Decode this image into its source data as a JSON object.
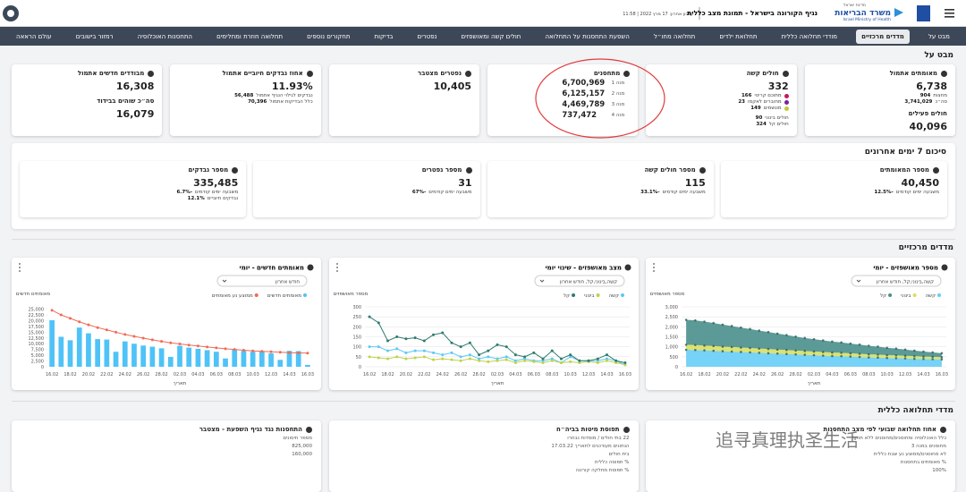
{
  "header": {
    "state": "מדינת ישראל",
    "ministry": "משרד הבריאות",
    "ministry_en": "Israel Ministry of Health",
    "title": "נגיף הקורונה בישראל - תמונת מצב כללית",
    "updated": "עדכון אחרון: 17 מרץ 2022 | 11:58"
  },
  "nav": [
    "מבט על",
    "מדדים מרכזיים",
    "מודדי תחלואה כללית",
    "תחלואת ילדים",
    "תחלואה מחו״ל",
    "השפעת התחסנות על התחלואה",
    "חולים קשה ומאושפזים",
    "נפטרים",
    "בדיקות",
    "תחקורים נוספים",
    "תחלואה חוזרת ומחלימים",
    "התחסנות האוכלוסיה",
    "רמזור בישובים",
    "עולם הראאה"
  ],
  "overview": {
    "title": "מבט על",
    "cards": [
      {
        "title": "מאומתים אתמול",
        "value": "6,738",
        "rows": [
          {
            "label": "מחצות",
            "value": "904"
          },
          {
            "label": "סה״כ",
            "value": "3,741,029"
          }
        ],
        "subtitle": "חולים פעילים",
        "value2": "40,096",
        "rows2": [
          {
            "label": "בבית",
            "value": "765"
          },
          {
            "label": "מחצות",
            "value": "-2597"
          }
        ]
      },
      {
        "title": "חולים קשה",
        "value": "332",
        "rows": [
          {
            "label": "מתוכם קריטי",
            "value": "166",
            "color": "#c2185b"
          },
          {
            "label": "מחוברים לאקמו",
            "value": "23",
            "color": "#7b1fa2"
          },
          {
            "label": "מונשמים",
            "value": "149",
            "color": "#c0ca33"
          }
        ],
        "rows2": [
          {
            "label": "חולים בינוני",
            "value": "90"
          },
          {
            "label": "חולים קל",
            "value": "324"
          }
        ]
      },
      {
        "title": "מתחסנים",
        "doses": [
          {
            "label": "מנה 1",
            "value": "6,700,969"
          },
          {
            "label": "מנה 2",
            "value": "6,125,157"
          },
          {
            "label": "מנה 3",
            "value": "4,469,789"
          },
          {
            "label": "מנה 4",
            "value": "737,472"
          }
        ]
      },
      {
        "title": "נפטרים מצטבר",
        "value": "10,405"
      },
      {
        "title": "אחוז נבדקים חיוביים אתמול",
        "value": "11.93%",
        "rows": [
          {
            "label": "נבדקים לגילוי הנגיף אתמול",
            "value": "56,488"
          },
          {
            "label": "כלל הבדיקות אתמול",
            "value": "70,396"
          }
        ]
      },
      {
        "title": "מבודדים חדשים אתמול",
        "value": "16,308",
        "subtitle": "סה״כ שוהים בבידוד",
        "value2": "16,079"
      }
    ]
  },
  "summary": {
    "title": "סיכום 7 ימים אחרונים",
    "cards": [
      {
        "title": "מספר המאומתים",
        "value": "40,450",
        "rows": [
          {
            "label": "משבעה ימים קודמים",
            "value": "-12.5%"
          }
        ]
      },
      {
        "title": "מספר חולים קשה",
        "value": "115",
        "rows": [
          {
            "label": "משבעה ימים קודמים",
            "value": "-33.1%"
          }
        ]
      },
      {
        "title": "מספר נפטרים",
        "value": "31",
        "rows": [
          {
            "label": "משבעה ימים קודמים",
            "value": "-67%"
          }
        ]
      },
      {
        "title": "מספר נבדקים",
        "value": "335,485",
        "rows": [
          {
            "label": "משבעה ימים קודמים",
            "value": "-6.7%"
          },
          {
            "label": "נבדקים חיוביים",
            "value": "12.1%"
          }
        ]
      }
    ]
  },
  "key_metrics": {
    "title": "מדדים מרכזיים"
  },
  "chart_data": [
    {
      "type": "area",
      "stacked": true,
      "title": "מספר מאושפזים - יומי",
      "dropdown": "קשה,בינוני,קל, חודש אחרון",
      "ylabel": "מספר מאושפזים",
      "xlabel": "תאריך",
      "grid": true,
      "categories": [
        "16.02",
        null,
        "18.02",
        null,
        "20.02",
        null,
        "22.02",
        null,
        "24.02",
        null,
        "26.02",
        null,
        "28.02",
        null,
        "02.03",
        null,
        "04.03",
        null,
        "06.03",
        null,
        "08.03",
        null,
        "10.03",
        null,
        "12.03",
        null,
        "14.03",
        null,
        "16.03"
      ],
      "ylim": [
        0,
        3000
      ],
      "yticks": [
        0,
        500,
        {
          "value": 1000,
          "label": "1,000"
        },
        {
          "value": 1500,
          "label": "1,500"
        },
        {
          "value": 2000,
          "label": "2,000"
        },
        {
          "value": 2500,
          "label": "2,500"
        },
        {
          "value": 3000,
          "label": "3,000"
        }
      ],
      "series": [
        {
          "name": "קשה",
          "color": "#67cdf5",
          "values": [
            850,
            840,
            820,
            800,
            780,
            760,
            740,
            720,
            700,
            680,
            660,
            640,
            620,
            600,
            580,
            560,
            540,
            530,
            510,
            490,
            470,
            460,
            440,
            430,
            420,
            400,
            390,
            380,
            370
          ]
        },
        {
          "name": "בינוני",
          "color": "#d9df5e",
          "values": [
            250,
            250,
            240,
            240,
            230,
            230,
            220,
            220,
            210,
            210,
            200,
            200,
            190,
            190,
            180,
            180,
            170,
            170,
            160,
            160,
            150,
            150,
            140,
            140,
            130,
            130,
            120,
            120,
            110
          ]
        },
        {
          "name": "קל",
          "color": "#4a8f8c",
          "values": [
            1250,
            1230,
            1200,
            1150,
            1100,
            1050,
            1000,
            950,
            900,
            850,
            800,
            750,
            700,
            650,
            620,
            580,
            550,
            520,
            490,
            460,
            430,
            400,
            370,
            340,
            310,
            280,
            250,
            220,
            200
          ]
        }
      ]
    },
    {
      "type": "line",
      "title": "מצב מאושפזים - שינוי יומי",
      "dropdown": "קשה,בינוני,קל, חודש אחרון",
      "ylabel": "מספר מאושפזים",
      "xlabel": "תאריך",
      "grid": true,
      "categories": [
        "16.02",
        null,
        "18.02",
        null,
        "20.02",
        null,
        "22.02",
        null,
        "24.02",
        null,
        "26.02",
        null,
        "28.02",
        null,
        "02.03",
        null,
        "04.03",
        null,
        "06.03",
        null,
        "08.03",
        null,
        "10.03",
        null,
        "12.03",
        null,
        "14.03",
        null,
        "16.03"
      ],
      "ylim": [
        0,
        300
      ],
      "yticks": [
        0,
        50,
        100,
        150,
        200,
        250,
        300
      ],
      "series": [
        {
          "name": "קשה",
          "color": "#5bc8f5",
          "values": [
            100,
            100,
            80,
            90,
            70,
            80,
            80,
            70,
            60,
            70,
            50,
            60,
            40,
            50,
            40,
            50,
            30,
            40,
            30,
            30,
            40,
            20,
            50,
            30,
            30,
            30,
            40,
            30,
            10
          ]
        },
        {
          "name": "בינוני",
          "color": "#bfd24a",
          "values": [
            50,
            45,
            40,
            50,
            40,
            45,
            50,
            35,
            40,
            35,
            30,
            40,
            30,
            25,
            30,
            35,
            20,
            30,
            25,
            20,
            30,
            20,
            25,
            20,
            25,
            20,
            30,
            20,
            10
          ]
        },
        {
          "name": "קל",
          "color": "#2f7a6f",
          "values": [
            250,
            220,
            130,
            150,
            140,
            145,
            130,
            160,
            170,
            120,
            100,
            120,
            60,
            80,
            110,
            100,
            60,
            50,
            70,
            40,
            80,
            40,
            60,
            30,
            30,
            40,
            60,
            30,
            20
          ]
        }
      ]
    },
    {
      "type": "bar",
      "title": "מאומתים חדשים - יומי",
      "dropdown": "חודש אחרון",
      "ylabel": "מאומתים חדשים",
      "xlabel": "תאריך",
      "grid": false,
      "categories": [
        "16.02",
        null,
        "18.02",
        null,
        "20.02",
        null,
        "22.02",
        null,
        "24.02",
        null,
        "26.02",
        null,
        "28.02",
        null,
        "02.03",
        null,
        "04.03",
        null,
        "06.03",
        null,
        "08.03",
        null,
        "10.03",
        null,
        "12.03",
        null,
        "14.03",
        null,
        "16.03"
      ],
      "ylim": [
        0,
        26000
      ],
      "yticks": [
        0,
        {
          "value": 2500,
          "label": "2,500"
        },
        {
          "value": 5000,
          "label": "5,000"
        },
        {
          "value": 7500,
          "label": "7,500"
        },
        {
          "value": 10000,
          "label": "10,000"
        },
        {
          "value": 12500,
          "label": "12,500"
        },
        {
          "value": 15000,
          "label": "15,000"
        },
        {
          "value": 17500,
          "label": "17,500"
        },
        {
          "value": 20000,
          "label": "20,000"
        },
        {
          "value": 22500,
          "label": "22,500"
        },
        {
          "value": 25000,
          "label": "25,000"
        }
      ],
      "series": [
        {
          "name": "מאומתים חדשים",
          "type": "bar",
          "color": "#4fc3f7",
          "values": [
            20200,
            13000,
            11500,
            17000,
            14500,
            12000,
            11800,
            6500,
            11000,
            10000,
            9200,
            8700,
            8000,
            4300,
            9100,
            8300,
            7800,
            7200,
            6500,
            3600,
            7400,
            6900,
            6500,
            6600,
            5800,
            3000,
            6900,
            6800,
            800
          ]
        },
        {
          "name": "ממוצע נע מאומתים",
          "type": "line",
          "color": "#f06a55",
          "values": [
            24500,
            22500,
            21000,
            19500,
            18200,
            17000,
            16000,
            15000,
            14000,
            13200,
            12400,
            11700,
            11000,
            10400,
            9900,
            9400,
            9000,
            8600,
            8200,
            7800,
            7500,
            7200,
            6900,
            6700,
            6500,
            6300,
            6100,
            6000,
            5900
          ]
        }
      ]
    }
  ],
  "general": {
    "title": "מדדי תחלואה כללית",
    "cards": [
      {
        "title": "אחוז תחלואה שבועי לפי מצב התחסנות",
        "texts": [
          "כלל האוכלוסיה ומחוסנים/מחוסנים ללא תוקף",
          "מחוסנים במנה 3",
          "לא מחוסנים/ממוצע נע שבת כללית",
          "% מאומתים בתחסנות",
          "100%"
        ]
      },
      {
        "title": "תפוסת מיטות בביה״ח",
        "texts": [
          "22 בתי חולים / מוסדות נבחרו",
          "הנתונים מעודכנים לתאריך 17.03.22",
          "בית חולים",
          "% תפוסה כללית",
          "% תפוסת מחלקה קורונה"
        ]
      },
      {
        "title": "התחסנות נגד נגיף השפעת - מצטבר",
        "texts": [
          "מספר חיסונים",
          "825,000",
          "160,000"
        ]
      }
    ]
  },
  "watermark": "追寻真理执圣生活"
}
